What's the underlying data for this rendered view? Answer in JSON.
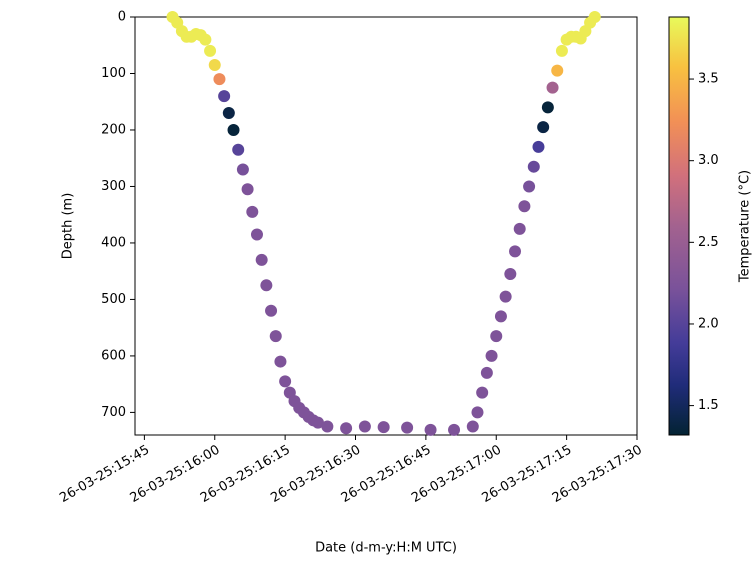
{
  "chart_data": {
    "type": "scatter",
    "xlabel": "Date (d-m-y:H:M UTC)",
    "ylabel": "Depth (m)",
    "colorbar_label": "Temperature (°C)",
    "colormap": "thermal",
    "x": [
      "26-03-25:15:51",
      "26-03-25:15:52",
      "26-03-25:15:53",
      "26-03-25:15:54",
      "26-03-25:15:55",
      "26-03-25:15:56",
      "26-03-25:15:57",
      "26-03-25:15:58",
      "26-03-25:15:59",
      "26-03-25:16:00",
      "26-03-25:16:01",
      "26-03-25:16:02",
      "26-03-25:16:03",
      "26-03-25:16:04",
      "26-03-25:16:05",
      "26-03-25:16:06",
      "26-03-25:16:07",
      "26-03-25:16:08",
      "26-03-25:16:09",
      "26-03-25:16:10",
      "26-03-25:16:11",
      "26-03-25:16:12",
      "26-03-25:16:13",
      "26-03-25:16:14",
      "26-03-25:16:15",
      "26-03-25:16:16",
      "26-03-25:16:17",
      "26-03-25:16:18",
      "26-03-25:16:19",
      "26-03-25:16:20",
      "26-03-25:16:21",
      "26-03-25:16:22",
      "26-03-25:16:24",
      "26-03-25:16:28",
      "26-03-25:16:32",
      "26-03-25:16:36",
      "26-03-25:16:41",
      "26-03-25:16:46",
      "26-03-25:16:51",
      "26-03-25:16:55",
      "26-03-25:16:56",
      "26-03-25:16:57",
      "26-03-25:16:58",
      "26-03-25:16:59",
      "26-03-25:17:00",
      "26-03-25:17:01",
      "26-03-25:17:02",
      "26-03-25:17:03",
      "26-03-25:17:04",
      "26-03-25:17:05",
      "26-03-25:17:06",
      "26-03-25:17:07",
      "26-03-25:17:08",
      "26-03-25:17:09",
      "26-03-25:17:10",
      "26-03-25:17:11",
      "26-03-25:17:12",
      "26-03-25:17:13",
      "26-03-25:17:14",
      "26-03-25:17:15",
      "26-03-25:17:16",
      "26-03-25:17:17",
      "26-03-25:17:18",
      "26-03-25:17:19",
      "26-03-25:17:20",
      "26-03-25:17:21"
    ],
    "values": [
      0,
      10,
      25,
      35,
      35,
      30,
      32,
      40,
      60,
      85,
      110,
      140,
      170,
      200,
      235,
      270,
      305,
      345,
      385,
      430,
      475,
      520,
      565,
      610,
      645,
      665,
      680,
      692,
      700,
      708,
      714,
      718,
      725,
      728,
      725,
      726,
      727,
      731,
      731,
      725,
      700,
      665,
      630,
      600,
      565,
      530,
      495,
      455,
      415,
      375,
      335,
      300,
      265,
      230,
      195,
      160,
      125,
      95,
      60,
      40,
      35,
      35,
      38,
      25,
      10,
      0
    ],
    "color_values": [
      3.8,
      3.8,
      3.8,
      3.8,
      3.8,
      3.8,
      3.8,
      3.8,
      3.8,
      3.7,
      3.2,
      2.0,
      1.4,
      1.35,
      2.0,
      2.2,
      2.25,
      2.25,
      2.25,
      2.25,
      2.25,
      2.25,
      2.25,
      2.25,
      2.25,
      2.25,
      2.25,
      2.25,
      2.25,
      2.25,
      2.25,
      2.25,
      2.25,
      2.25,
      2.25,
      2.25,
      2.25,
      2.25,
      2.25,
      2.25,
      2.25,
      2.25,
      2.25,
      2.25,
      2.25,
      2.25,
      2.25,
      2.25,
      2.25,
      2.25,
      2.25,
      2.2,
      2.1,
      1.9,
      1.4,
      1.35,
      2.6,
      3.5,
      3.8,
      3.8,
      3.8,
      3.8,
      3.8,
      3.8,
      3.8,
      3.8
    ],
    "xlim": [
      "26-03-25:15:43",
      "26-03-25:17:30"
    ],
    "xticks": [
      "26-03-25:15:45",
      "26-03-25:16:00",
      "26-03-25:16:15",
      "26-03-25:16:30",
      "26-03-25:16:45",
      "26-03-25:17:00",
      "26-03-25:17:15",
      "26-03-25:17:30"
    ],
    "ylim": [
      740,
      0
    ],
    "yticks": [
      0,
      100,
      200,
      300,
      400,
      500,
      600,
      700
    ],
    "clim": [
      1.32,
      3.88
    ],
    "cticks": [
      1.5,
      {
        "value": 2,
        "label": "2.0"
      },
      2.5,
      {
        "value": 3,
        "label": "3.0"
      },
      3.5
    ]
  }
}
